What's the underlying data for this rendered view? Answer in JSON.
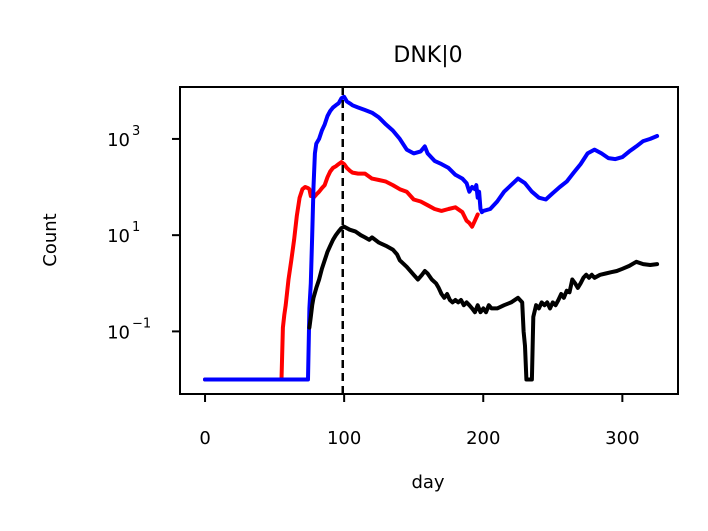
{
  "chart_data": {
    "type": "line",
    "title": "DNK|0",
    "xlabel": "day",
    "ylabel": "Count",
    "yscale": "log",
    "xlim": [
      -18,
      340
    ],
    "ylim": [
      0.005,
      12000
    ],
    "grid": false,
    "legend": "none",
    "x_ticks": [
      {
        "value": 0,
        "label": "0"
      },
      {
        "value": 100,
        "label": "100"
      },
      {
        "value": 200,
        "label": "200"
      },
      {
        "value": 300,
        "label": "300"
      }
    ],
    "y_ticks": [
      {
        "value": 0.1,
        "base": "10",
        "exp": "−1"
      },
      {
        "value": 10,
        "base": "10",
        "exp": "1"
      },
      {
        "value": 1000,
        "base": "10",
        "exp": "3"
      }
    ],
    "vline": {
      "x": 99,
      "style": "dashed",
      "color": "#000000"
    },
    "series": [
      {
        "color": "#ff0000",
        "points": [
          [
            0,
            0.01
          ],
          [
            55,
            0.01
          ],
          [
            56,
            0.12
          ],
          [
            57,
            0.22
          ],
          [
            58,
            0.35
          ],
          [
            60,
            1.2
          ],
          [
            62,
            3
          ],
          [
            64,
            8
          ],
          [
            66,
            25
          ],
          [
            68,
            60
          ],
          [
            70,
            90
          ],
          [
            72,
            100
          ],
          [
            74,
            95
          ],
          [
            75,
            90
          ],
          [
            76,
            65
          ],
          [
            77,
            70
          ],
          [
            78,
            60
          ],
          [
            80,
            70
          ],
          [
            82,
            80
          ],
          [
            84,
            95
          ],
          [
            86,
            110
          ],
          [
            88,
            160
          ],
          [
            90,
            210
          ],
          [
            92,
            250
          ],
          [
            94,
            270
          ],
          [
            96,
            300
          ],
          [
            98,
            330
          ],
          [
            100,
            300
          ],
          [
            102,
            250
          ],
          [
            104,
            220
          ],
          [
            106,
            200
          ],
          [
            108,
            195
          ],
          [
            110,
            190
          ],
          [
            115,
            190
          ],
          [
            120,
            150
          ],
          [
            125,
            140
          ],
          [
            130,
            130
          ],
          [
            135,
            110
          ],
          [
            140,
            90
          ],
          [
            145,
            80
          ],
          [
            150,
            55
          ],
          [
            155,
            50
          ],
          [
            160,
            42
          ],
          [
            165,
            35
          ],
          [
            170,
            32
          ],
          [
            175,
            35
          ],
          [
            180,
            38
          ],
          [
            185,
            30
          ],
          [
            188,
            20
          ],
          [
            190,
            18
          ],
          [
            192,
            15
          ],
          [
            194,
            20
          ],
          [
            196,
            27
          ]
        ]
      },
      {
        "color": "#0000ff",
        "points": [
          [
            0,
            0.01
          ],
          [
            74,
            0.01
          ],
          [
            75,
            0.3
          ],
          [
            76,
            1
          ],
          [
            77,
            10
          ],
          [
            78,
            100
          ],
          [
            79,
            500
          ],
          [
            80,
            800
          ],
          [
            82,
            1000
          ],
          [
            84,
            1500
          ],
          [
            86,
            2000
          ],
          [
            88,
            3000
          ],
          [
            90,
            3800
          ],
          [
            92,
            4500
          ],
          [
            94,
            5000
          ],
          [
            96,
            5500
          ],
          [
            98,
            7000
          ],
          [
            100,
            7500
          ],
          [
            102,
            6000
          ],
          [
            104,
            5500
          ],
          [
            106,
            5000
          ],
          [
            110,
            4500
          ],
          [
            115,
            4000
          ],
          [
            120,
            3500
          ],
          [
            125,
            2800
          ],
          [
            130,
            2000
          ],
          [
            135,
            1500
          ],
          [
            140,
            1000
          ],
          [
            145,
            600
          ],
          [
            150,
            500
          ],
          [
            155,
            550
          ],
          [
            158,
            700
          ],
          [
            160,
            500
          ],
          [
            165,
            350
          ],
          [
            170,
            300
          ],
          [
            175,
            250
          ],
          [
            180,
            180
          ],
          [
            185,
            150
          ],
          [
            188,
            120
          ],
          [
            190,
            80
          ],
          [
            192,
            100
          ],
          [
            194,
            90
          ],
          [
            195,
            110
          ],
          [
            196,
            60
          ],
          [
            197,
            80
          ],
          [
            198,
            35
          ],
          [
            199,
            30
          ],
          [
            200,
            32
          ],
          [
            205,
            35
          ],
          [
            210,
            50
          ],
          [
            215,
            80
          ],
          [
            220,
            110
          ],
          [
            225,
            150
          ],
          [
            230,
            120
          ],
          [
            235,
            80
          ],
          [
            240,
            60
          ],
          [
            245,
            55
          ],
          [
            250,
            75
          ],
          [
            255,
            100
          ],
          [
            260,
            130
          ],
          [
            265,
            200
          ],
          [
            270,
            300
          ],
          [
            275,
            500
          ],
          [
            280,
            600
          ],
          [
            285,
            500
          ],
          [
            290,
            400
          ],
          [
            295,
            380
          ],
          [
            300,
            420
          ],
          [
            305,
            550
          ],
          [
            310,
            700
          ],
          [
            315,
            900
          ],
          [
            320,
            1000
          ],
          [
            325,
            1150
          ]
        ]
      },
      {
        "color": "#000000",
        "points": [
          [
            75,
            0.12
          ],
          [
            76,
            0.2
          ],
          [
            77,
            0.35
          ],
          [
            78,
            0.5
          ],
          [
            80,
            0.8
          ],
          [
            82,
            1.2
          ],
          [
            84,
            2
          ],
          [
            86,
            3
          ],
          [
            88,
            4.5
          ],
          [
            90,
            6
          ],
          [
            92,
            8
          ],
          [
            94,
            10
          ],
          [
            96,
            12
          ],
          [
            98,
            14
          ],
          [
            100,
            15
          ],
          [
            104,
            13
          ],
          [
            108,
            12
          ],
          [
            112,
            10
          ],
          [
            115,
            9
          ],
          [
            118,
            8
          ],
          [
            120,
            9
          ],
          [
            125,
            7
          ],
          [
            130,
            6
          ],
          [
            135,
            5
          ],
          [
            138,
            4
          ],
          [
            140,
            3
          ],
          [
            145,
            2.2
          ],
          [
            150,
            1.5
          ],
          [
            153,
            1.2
          ],
          [
            156,
            1.5
          ],
          [
            158,
            1.8
          ],
          [
            160,
            1.6
          ],
          [
            163,
            1.2
          ],
          [
            166,
            1
          ],
          [
            168,
            0.8
          ],
          [
            170,
            0.6
          ],
          [
            172,
            0.5
          ],
          [
            174,
            0.6
          ],
          [
            176,
            0.45
          ],
          [
            178,
            0.4
          ],
          [
            180,
            0.45
          ],
          [
            182,
            0.4
          ],
          [
            184,
            0.45
          ],
          [
            186,
            0.35
          ],
          [
            188,
            0.4
          ],
          [
            190,
            0.35
          ],
          [
            192,
            0.3
          ],
          [
            194,
            0.25
          ],
          [
            196,
            0.35
          ],
          [
            198,
            0.25
          ],
          [
            200,
            0.3
          ],
          [
            202,
            0.25
          ],
          [
            204,
            0.35
          ],
          [
            206,
            0.3
          ],
          [
            210,
            0.3
          ],
          [
            215,
            0.35
          ],
          [
            220,
            0.4
          ],
          [
            225,
            0.5
          ],
          [
            228,
            0.4
          ],
          [
            229,
            0.1
          ],
          [
            230,
            0.05
          ],
          [
            231,
            0.01
          ],
          [
            235,
            0.01
          ],
          [
            236,
            0.2
          ],
          [
            238,
            0.35
          ],
          [
            240,
            0.3
          ],
          [
            242,
            0.4
          ],
          [
            244,
            0.35
          ],
          [
            246,
            0.4
          ],
          [
            248,
            0.3
          ],
          [
            250,
            0.4
          ],
          [
            252,
            0.35
          ],
          [
            254,
            0.45
          ],
          [
            256,
            0.6
          ],
          [
            258,
            0.5
          ],
          [
            260,
            0.7
          ],
          [
            262,
            0.65
          ],
          [
            264,
            1.2
          ],
          [
            266,
            1
          ],
          [
            268,
            0.8
          ],
          [
            270,
            1
          ],
          [
            272,
            1.3
          ],
          [
            274,
            1.5
          ],
          [
            276,
            1.3
          ],
          [
            278,
            1.5
          ],
          [
            280,
            1.3
          ],
          [
            284,
            1.5
          ],
          [
            288,
            1.6
          ],
          [
            292,
            1.7
          ],
          [
            296,
            1.8
          ],
          [
            300,
            2
          ],
          [
            305,
            2.3
          ],
          [
            310,
            2.8
          ],
          [
            315,
            2.5
          ],
          [
            320,
            2.4
          ],
          [
            325,
            2.5
          ]
        ]
      }
    ]
  }
}
